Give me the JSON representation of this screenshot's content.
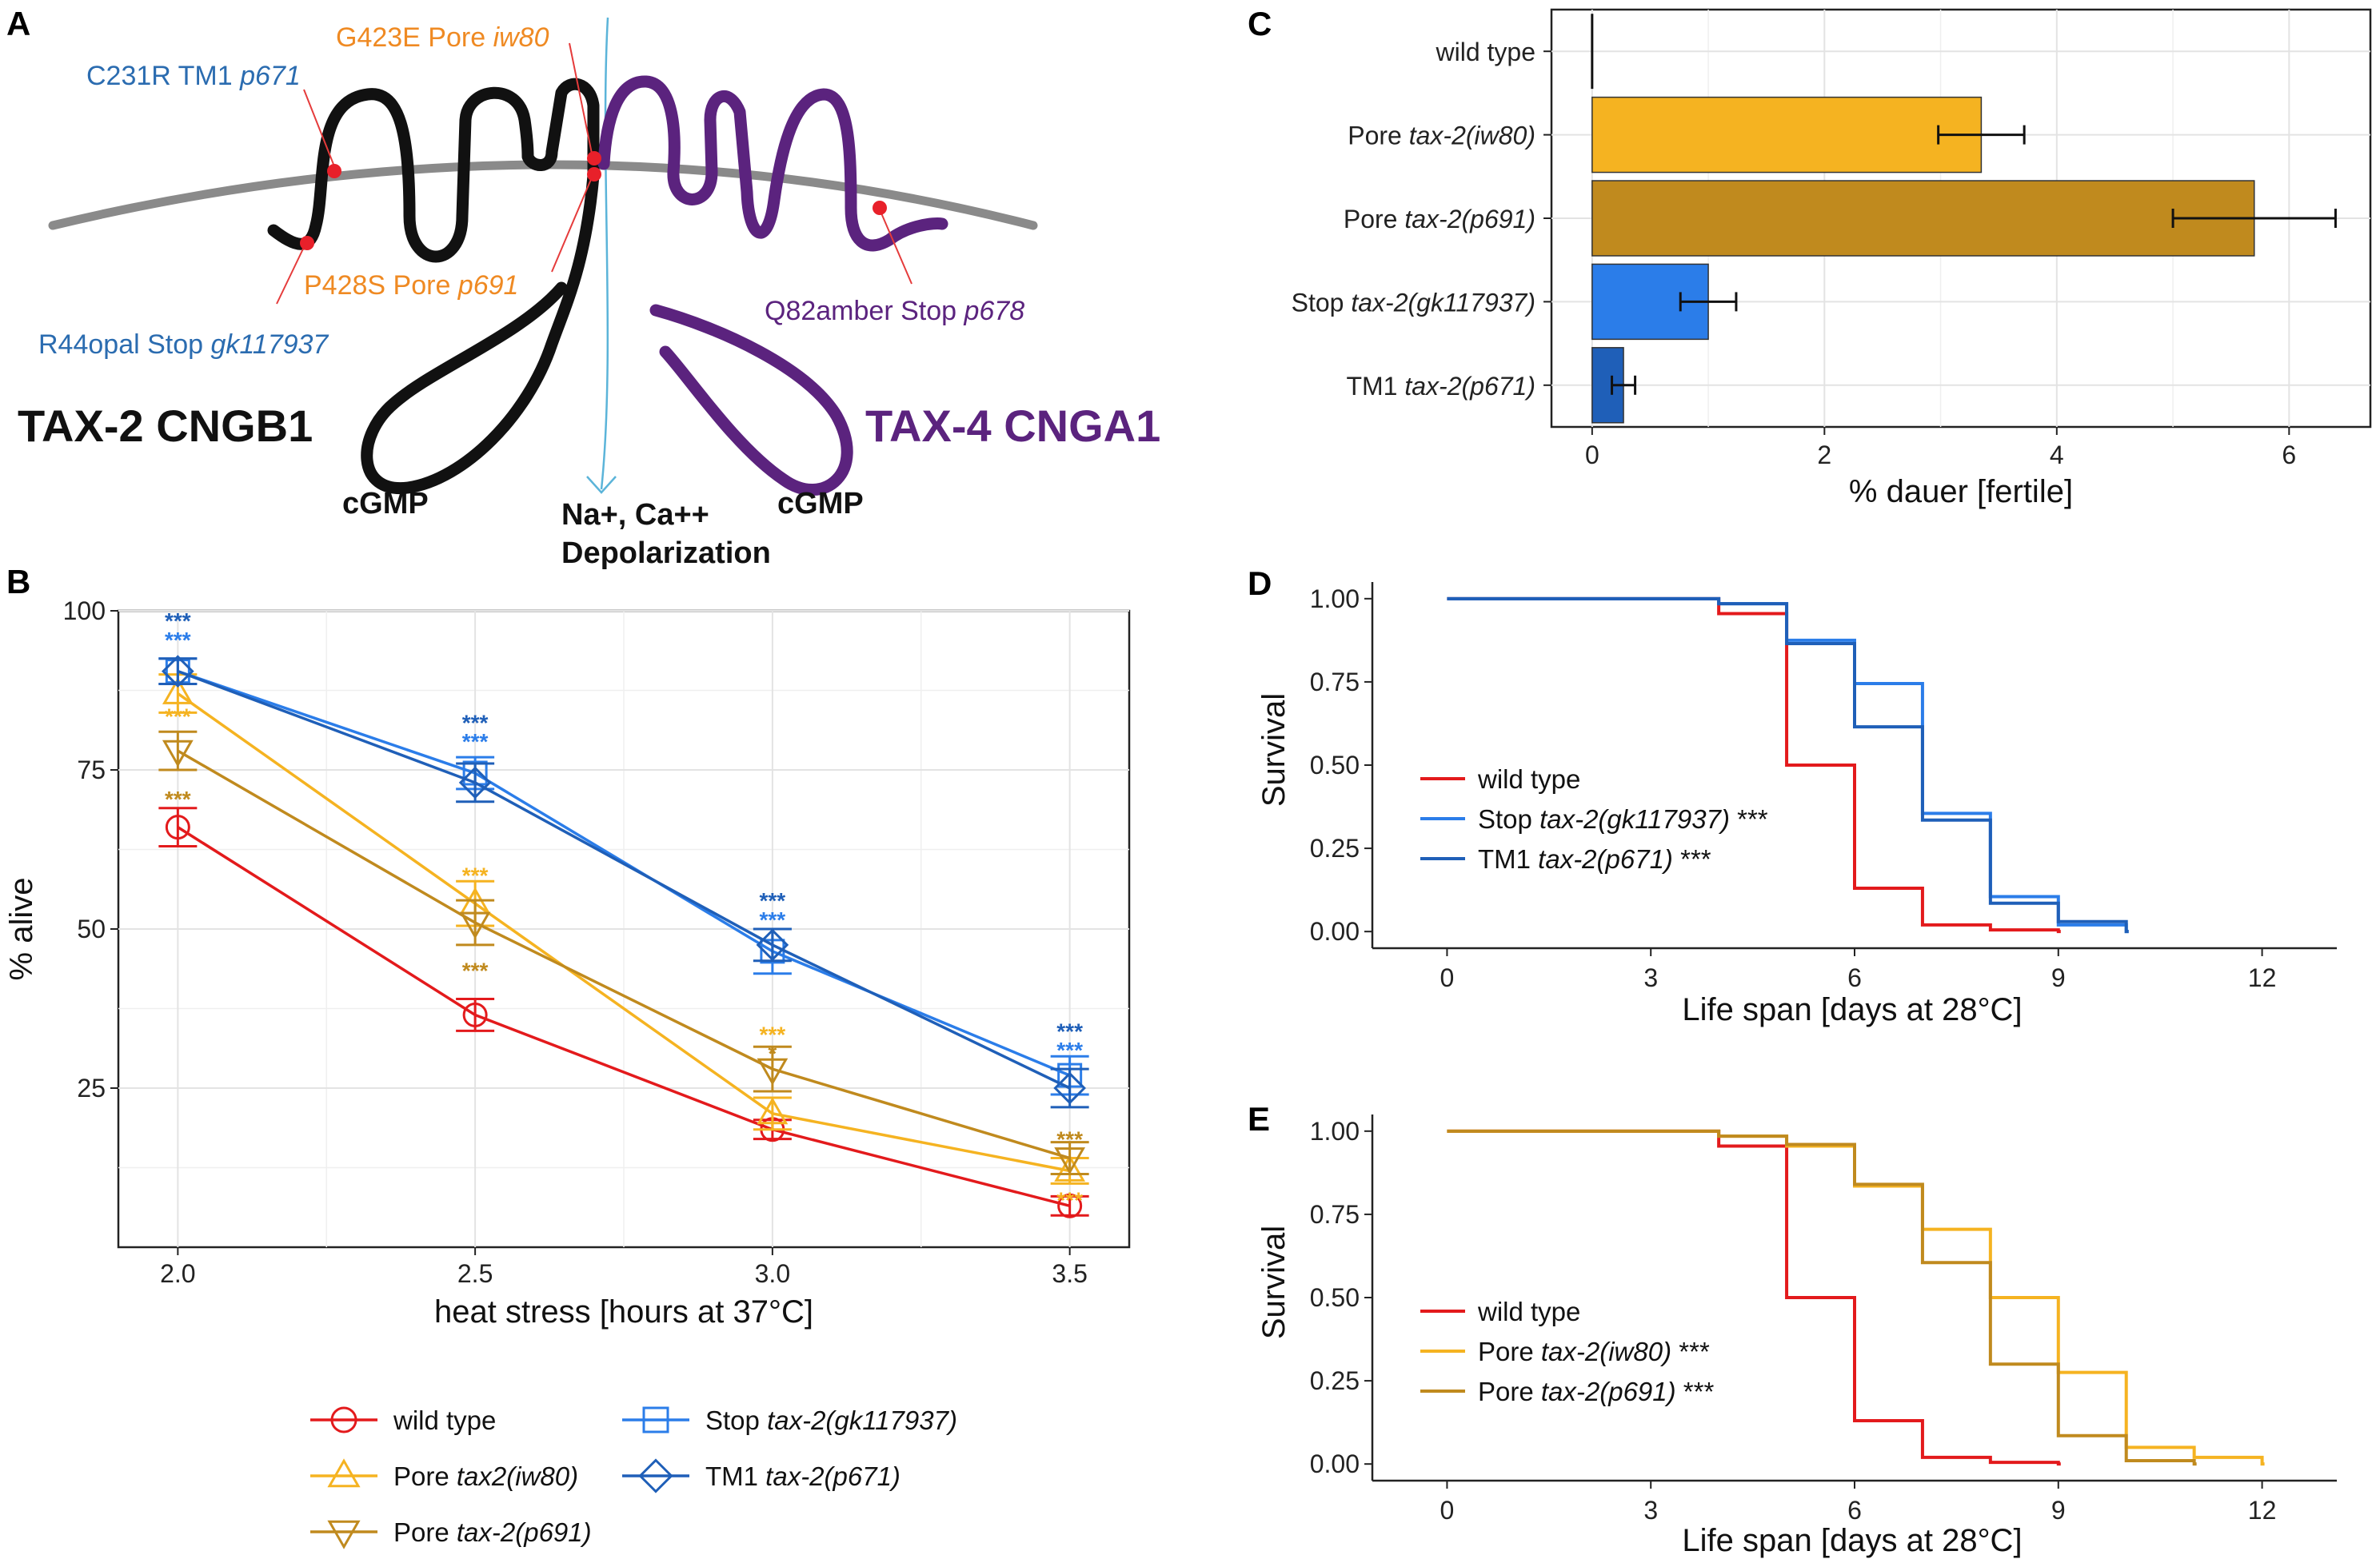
{
  "colors": {
    "wt": "#e31a1c",
    "iw80": "#f5b321",
    "p691": "#c08a1e",
    "gk": "#2b7de9",
    "p671": "#1f5fb8",
    "purple": "#5b237e",
    "orange": "#ef8a23",
    "blue_text": "#2b6cb0",
    "membrane": "#8a8a8a",
    "ion": "#5bb4d9"
  },
  "panel_a": {
    "label": "A",
    "tax2_title": "TAX-2 CNGB1",
    "tax4_title": "TAX-4 CNGA1",
    "cgmp_left": "cGMP",
    "cgmp_right": "cGMP",
    "ion_line1": "Na+, Ca++",
    "ion_line2": "Depolarization",
    "mut_c231r": {
      "plain": "C231R TM1 ",
      "ital": "p671"
    },
    "mut_g423e": {
      "plain": "G423E Pore ",
      "ital": "iw80"
    },
    "mut_p428s": {
      "plain": "P428S Pore ",
      "ital": "p691"
    },
    "mut_r44": {
      "plain": "R44opal Stop ",
      "ital": "gk117937"
    },
    "mut_q82": {
      "plain": "Q82amber Stop ",
      "ital": "p678"
    }
  },
  "chart_data": [
    {
      "panel": "B",
      "type": "line",
      "xlabel": "heat stress [hours at 37°C]",
      "ylabel": "% alive",
      "x": [
        2.0,
        2.5,
        3.0,
        3.5
      ],
      "xticks": [
        "2.0",
        "2.5",
        "3.0",
        "3.5"
      ],
      "yticks": [
        "25",
        "50",
        "75",
        "100"
      ],
      "xlim": [
        1.9,
        3.6
      ],
      "ylim": [
        0,
        100
      ],
      "series": [
        {
          "key": "wt",
          "marker": "circle",
          "values": [
            66,
            36.5,
            18.5,
            6.5
          ],
          "err": [
            3,
            2.5,
            1.5,
            1.5
          ]
        },
        {
          "key": "iw80",
          "marker": "triangle-up",
          "values": [
            87,
            54,
            21,
            12
          ],
          "err": [
            3,
            3.5,
            2.5,
            2
          ]
        },
        {
          "key": "p691",
          "marker": "triangle-down",
          "values": [
            78,
            51,
            28,
            14
          ],
          "err": [
            3,
            3.5,
            3.5,
            2.5
          ]
        },
        {
          "key": "gk",
          "marker": "square",
          "values": [
            90.5,
            74.5,
            46.5,
            27
          ],
          "err": [
            2,
            2.5,
            3.5,
            3
          ]
        },
        {
          "key": "p671",
          "marker": "diamond",
          "values": [
            90.5,
            73,
            47.5,
            25
          ],
          "err": [
            2,
            3,
            2.5,
            3
          ]
        }
      ],
      "stars": [
        {
          "key": "p671",
          "x": 2.0,
          "y": 98.5,
          "text": "***"
        },
        {
          "key": "gk",
          "x": 2.0,
          "y": 95.5,
          "text": "***"
        },
        {
          "key": "iw80",
          "x": 2.0,
          "y": 83.5,
          "text": "***"
        },
        {
          "key": "p691",
          "x": 2.0,
          "y": 70.5,
          "text": "***"
        },
        {
          "key": "p671",
          "x": 2.5,
          "y": 82.5,
          "text": "***"
        },
        {
          "key": "gk",
          "x": 2.5,
          "y": 79.5,
          "text": "***"
        },
        {
          "key": "iw80",
          "x": 2.5,
          "y": 58.5,
          "text": "***"
        },
        {
          "key": "p691",
          "x": 2.5,
          "y": 43.5,
          "text": "***"
        },
        {
          "key": "p671",
          "x": 3.0,
          "y": 54.5,
          "text": "***"
        },
        {
          "key": "gk",
          "x": 3.0,
          "y": 51.5,
          "text": "***"
        },
        {
          "key": "iw80",
          "x": 3.0,
          "y": 33.5,
          "text": "***"
        },
        {
          "key": "p691",
          "x": 3.0,
          "y": 30.5,
          "text": "*"
        },
        {
          "key": "p671",
          "x": 3.5,
          "y": 34.0,
          "text": "***"
        },
        {
          "key": "gk",
          "x": 3.5,
          "y": 31.0,
          "text": "***"
        },
        {
          "key": "p691",
          "x": 3.5,
          "y": 17.0,
          "text": "***"
        },
        {
          "key": "iw80",
          "x": 3.5,
          "y": 7.5,
          "text": "***"
        }
      ],
      "legend": [
        {
          "key": "wt",
          "marker": "circle",
          "plain": "wild type",
          "ital": ""
        },
        {
          "key": "iw80",
          "marker": "triangle-up",
          "plain": "Pore ",
          "ital": "tax2(iw80)"
        },
        {
          "key": "p691",
          "marker": "triangle-down",
          "plain": "Pore ",
          "ital": "tax-2(p691)"
        },
        {
          "key": "gk",
          "marker": "square",
          "plain": "Stop ",
          "ital": "tax-2(gk117937)"
        },
        {
          "key": "p671",
          "marker": "diamond",
          "plain": "TM1 ",
          "ital": "tax-2(p671)"
        }
      ]
    },
    {
      "panel": "C",
      "type": "bar",
      "orientation": "horizontal",
      "xlabel": "% dauer [fertile]",
      "xticks": [
        "0",
        "2",
        "4",
        "6"
      ],
      "xlim": [
        -0.35,
        6.7
      ],
      "categories": [
        {
          "key": "wt",
          "plain": "wild type",
          "ital": "",
          "value": 0,
          "err": 0
        },
        {
          "key": "iw80",
          "plain": "Pore ",
          "ital": "tax-2(iw80)",
          "value": 3.35,
          "err": 0.37
        },
        {
          "key": "p691",
          "plain": "Pore ",
          "ital": "tax-2(p691)",
          "value": 5.7,
          "err": 0.7
        },
        {
          "key": "gk",
          "plain": "Stop ",
          "ital": "tax-2(gk117937)",
          "value": 1.0,
          "err": 0.24
        },
        {
          "key": "p671",
          "plain": "TM1 ",
          "ital": "tax-2(p671)",
          "value": 0.27,
          "err": 0.1
        }
      ]
    },
    {
      "panel": "D",
      "type": "line",
      "subtype": "step-survival",
      "xlabel": "Life span [days at 28°C]",
      "ylabel": "Survival",
      "xticks": [
        "0",
        "3",
        "6",
        "9",
        "12"
      ],
      "yticks": [
        "0.00",
        "0.25",
        "0.50",
        "0.75",
        "1.00"
      ],
      "xlim": [
        -1.1,
        13.1
      ],
      "ylim": [
        0,
        1
      ],
      "series": [
        {
          "key": "wt",
          "x": [
            0,
            4,
            5,
            6,
            7,
            8,
            9
          ],
          "y": [
            1.0,
            0.955,
            0.5,
            0.13,
            0.02,
            0.005,
            0.0
          ]
        },
        {
          "key": "gk",
          "x": [
            0,
            4,
            5,
            6,
            7,
            8,
            9,
            10
          ],
          "y": [
            1.0,
            0.985,
            0.875,
            0.745,
            0.355,
            0.105,
            0.02,
            0.0
          ]
        },
        {
          "key": "p671",
          "x": [
            0,
            4,
            5,
            6,
            7,
            8,
            9,
            10
          ],
          "y": [
            1.0,
            0.985,
            0.865,
            0.615,
            0.335,
            0.085,
            0.03,
            0.0
          ]
        }
      ],
      "legend": [
        {
          "key": "wt",
          "plain": "wild type",
          "ital": "",
          "stars": ""
        },
        {
          "key": "gk",
          "plain": "Stop ",
          "ital": "tax-2(gk117937)",
          "stars": " ***"
        },
        {
          "key": "p671",
          "plain": "TM1 ",
          "ital": "tax-2(p671)",
          "stars": " ***"
        }
      ]
    },
    {
      "panel": "E",
      "type": "line",
      "subtype": "step-survival",
      "xlabel": "Life span [days at 28°C]",
      "ylabel": "Survival",
      "xticks": [
        "0",
        "3",
        "6",
        "9",
        "12"
      ],
      "yticks": [
        "0.00",
        "0.25",
        "0.50",
        "0.75",
        "1.00"
      ],
      "xlim": [
        -1.1,
        13.1
      ],
      "ylim": [
        0,
        1
      ],
      "series": [
        {
          "key": "wt",
          "x": [
            0,
            4,
            5,
            6,
            7,
            8,
            9
          ],
          "y": [
            1.0,
            0.955,
            0.5,
            0.13,
            0.02,
            0.005,
            0.0
          ]
        },
        {
          "key": "iw80",
          "x": [
            0,
            4,
            5,
            6,
            7,
            8,
            9,
            10,
            11,
            12
          ],
          "y": [
            1.0,
            0.985,
            0.955,
            0.835,
            0.705,
            0.5,
            0.275,
            0.05,
            0.02,
            0.0
          ]
        },
        {
          "key": "p691",
          "x": [
            0,
            4,
            5,
            6,
            7,
            8,
            9,
            10,
            11
          ],
          "y": [
            1.0,
            0.985,
            0.96,
            0.84,
            0.605,
            0.3,
            0.085,
            0.01,
            0.0
          ]
        }
      ],
      "legend": [
        {
          "key": "wt",
          "plain": "wild type",
          "ital": "",
          "stars": ""
        },
        {
          "key": "iw80",
          "plain": "Pore ",
          "ital": "tax-2(iw80)",
          "stars": " ***"
        },
        {
          "key": "p691",
          "plain": "Pore ",
          "ital": "tax-2(p691)",
          "stars": " ***"
        }
      ]
    }
  ]
}
